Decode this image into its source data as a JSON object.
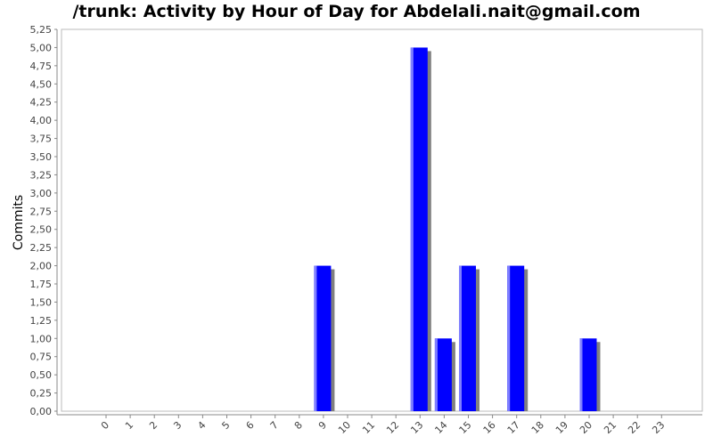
{
  "chart_data": {
    "type": "bar",
    "title": "/trunk: Activity by Hour of Day for Abdelali.nait@gmail.com",
    "xlabel": "",
    "ylabel": "Commits",
    "categories": [
      "0",
      "1",
      "2",
      "3",
      "4",
      "5",
      "6",
      "7",
      "8",
      "9",
      "10",
      "11",
      "12",
      "13",
      "14",
      "15",
      "16",
      "17",
      "18",
      "19",
      "20",
      "21",
      "22",
      "23"
    ],
    "values": [
      0,
      0,
      0,
      0,
      0,
      0,
      0,
      0,
      0,
      2,
      0,
      0,
      0,
      5,
      1,
      2,
      0,
      2,
      0,
      0,
      1,
      0,
      0,
      0
    ],
    "ylim": [
      0,
      5.25
    ],
    "y_ticks": [
      "0,00",
      "0,25",
      "0,50",
      "0,75",
      "1,00",
      "1,25",
      "1,50",
      "1,75",
      "2,00",
      "2,25",
      "2,50",
      "2,75",
      "3,00",
      "3,25",
      "3,50",
      "3,75",
      "4,00",
      "4,25",
      "4,50",
      "4,75",
      "5,00",
      "5,25"
    ],
    "grid": false,
    "legend": "none",
    "colors": {
      "bar": "#0000ff",
      "bar_highlight": "#8080ff",
      "bar_shadow": "#808080",
      "axis": "#888888",
      "text": "#444444"
    }
  }
}
